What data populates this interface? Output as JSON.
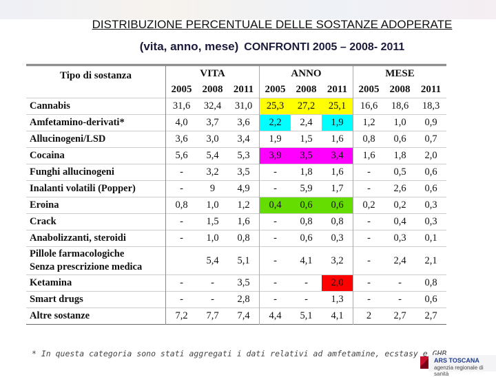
{
  "header": {
    "title": "DISTRIBUZIONE PERCENTUALE DELLE SOSTANZE ADOPERATE",
    "subtitle_a": "(vita, anno, mese)",
    "subtitle_b": "CONFRONTI 2005 – 2008- 2011"
  },
  "table": {
    "first_header": "Tipo di sostanza",
    "groups": [
      "VITA",
      "ANNO",
      "MESE"
    ],
    "years": [
      "2005",
      "2008",
      "2011"
    ],
    "rows": [
      {
        "label": [
          "Cannabis"
        ],
        "cells": [
          "31,6",
          "32,4",
          "31,0",
          "25,3",
          "27,2",
          "25,1",
          "16,6",
          "18,6",
          "18,3"
        ]
      },
      {
        "label": [
          "Amfetamino-derivati*"
        ],
        "cells": [
          "4,0",
          "3,7",
          "3,6",
          "2,2",
          "2,4",
          "1,9",
          "1,2",
          "1,0",
          "0,9"
        ]
      },
      {
        "label": [
          "Allucinogeni/LSD"
        ],
        "cells": [
          "3,6",
          "3,0",
          "3,4",
          "1,9",
          "1,5",
          "1,6",
          "0,8",
          "0,6",
          "0,7"
        ]
      },
      {
        "label": [
          "Cocaina"
        ],
        "cells": [
          "5,6",
          "5,4",
          "5,3",
          "3,9",
          "3,5",
          "3,4",
          "1,6",
          "1,8",
          "2,0"
        ]
      },
      {
        "label": [
          "Funghi allucinogeni"
        ],
        "cells": [
          "-",
          "3,2",
          "3,5",
          "-",
          "1,8",
          "1,6",
          "-",
          "0,5",
          "0,6"
        ]
      },
      {
        "label": [
          "Inalanti volatili (Popper)"
        ],
        "cells": [
          "-",
          "9",
          "4,9",
          "-",
          "5,9",
          "1,7",
          "-",
          "2,6",
          "0,6"
        ]
      },
      {
        "label": [
          "Eroina"
        ],
        "cells": [
          "0,8",
          "1,0",
          "1,2",
          "0,4",
          "0,6",
          "0,6",
          "0,2",
          "0,2",
          "0,3"
        ]
      },
      {
        "label": [
          "Crack"
        ],
        "cells": [
          "-",
          "1,5",
          "1,6",
          "-",
          "0,8",
          "0,8",
          "-",
          "0,4",
          "0,3"
        ]
      },
      {
        "label": [
          "Anabolizzanti, steroidi"
        ],
        "cells": [
          "-",
          "1,0",
          "0,8",
          "-",
          "0,6",
          "0,3",
          "-",
          "0,3",
          "0,1"
        ]
      },
      {
        "label": [
          "Pillole farmacologiche",
          "Senza prescrizione medica"
        ],
        "cells": [
          null,
          "5,4",
          "5,1",
          "-",
          "4,1",
          "3,2",
          "-",
          "2,4",
          "2,1"
        ]
      },
      {
        "label": [
          "Ketamina"
        ],
        "cells": [
          "-",
          "-",
          "3,5",
          "-",
          "-",
          "2,0",
          "-",
          "-",
          "0,8"
        ]
      },
      {
        "label": [
          "Smart drugs"
        ],
        "cells": [
          "-",
          "-",
          "2,8",
          "-",
          "-",
          "1,3",
          "-",
          "-",
          "0,6"
        ]
      },
      {
        "label": [
          "Altre sostanze"
        ],
        "cells": [
          "7,2",
          "7,7",
          "7,4",
          "4,4",
          "5,1",
          "4,1",
          "2",
          "2,7",
          "2,7"
        ]
      }
    ],
    "highlights": [
      {
        "row": 0,
        "cols": [
          3,
          4,
          5
        ],
        "color": "#ffff00"
      },
      {
        "row": 1,
        "cols": [
          3
        ],
        "color": "#00ffff"
      },
      {
        "row": 1,
        "cols": [
          5
        ],
        "color": "#00ffff"
      },
      {
        "row": 3,
        "cols": [
          3,
          4,
          5
        ],
        "color": "#ff00ff"
      },
      {
        "row": 6,
        "cols": [
          3,
          4,
          5
        ],
        "color": "#66dd00"
      },
      {
        "row": 10,
        "cols": [
          5
        ],
        "color": "#ff0000"
      }
    ]
  },
  "footnote": "* In questa categoria sono stati aggregati i dati relativi ad amfetamine, ecstasy e GHB",
  "logo": {
    "name": "ARS TOSCANA",
    "tagline": "agenzia regionale di sanità"
  }
}
